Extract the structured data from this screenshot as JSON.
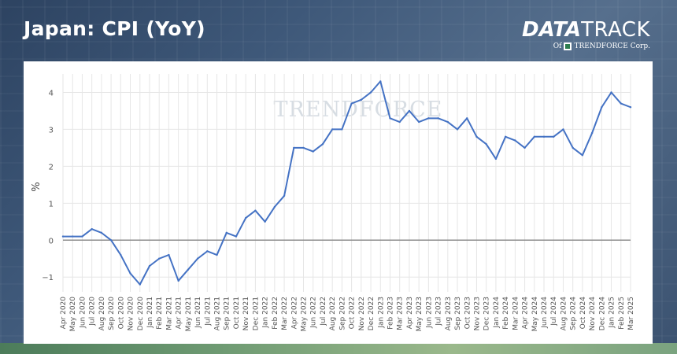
{
  "header": {
    "title": "Japan: CPI (YoY)",
    "brand_strong": "DATA",
    "brand_light": "TRACK",
    "brand_sub_prefix": "Of",
    "brand_sub_name": "TRENDFORCE",
    "brand_sub_suffix": "Corp."
  },
  "colors": {
    "line": "#4472c4",
    "zero_line": "#8c8c8c",
    "grid": "#e6e6e6"
  },
  "chart_data": {
    "type": "line",
    "title": "",
    "xlabel": "",
    "ylabel": "%",
    "watermark": "TRENDFORCE",
    "ylim": [
      -1.4,
      4.5
    ],
    "yticks": [
      -1,
      0,
      1,
      2,
      3,
      4
    ],
    "ytick_labels": [
      "−1",
      "0",
      "1",
      "2",
      "3",
      "4"
    ],
    "grid": true,
    "legend": "none",
    "x": [
      "Apr 2020",
      "May 2020",
      "Jun 2020",
      "Jul 2020",
      "Aug 2020",
      "Sep 2020",
      "Oct 2020",
      "Nov 2020",
      "Dec 2020",
      "Jan 2021",
      "Feb 2021",
      "Mar 2021",
      "Apr 2021",
      "May 2021",
      "Jun 2021",
      "Jul 2021",
      "Aug 2021",
      "Sep 2021",
      "Oct 2021",
      "Nov 2021",
      "Dec 2021",
      "Jan 2022",
      "Feb 2022",
      "Mar 2022",
      "Apr 2022",
      "May 2022",
      "Jun 2022",
      "Jul 2022",
      "Aug 2022",
      "Sep 2022",
      "Oct 2022",
      "Nov 2022",
      "Dec 2022",
      "Jan 2023",
      "Feb 2023",
      "Mar 2023",
      "Apr 2023",
      "May 2023",
      "Jun 2023",
      "Jul 2023",
      "Aug 2023",
      "Sep 2023",
      "Oct 2023",
      "Nov 2023",
      "Dec 2023",
      "Jan 2024",
      "Feb 2024",
      "Mar 2024",
      "Apr 2024",
      "May 2024",
      "Jun 2024",
      "Jul 2024",
      "Aug 2024",
      "Sep 2024",
      "Oct 2024",
      "Nov 2024",
      "Dec 2024",
      "Jan 2025",
      "Feb 2025",
      "Mar 2025"
    ],
    "series": [
      {
        "values": [
          0.1,
          0.1,
          0.1,
          0.3,
          0.2,
          0.0,
          -0.4,
          -0.9,
          -1.2,
          -0.7,
          -0.5,
          -0.4,
          -1.1,
          -0.8,
          -0.5,
          -0.3,
          -0.4,
          0.2,
          0.1,
          0.6,
          0.8,
          0.5,
          0.9,
          1.2,
          2.5,
          2.5,
          2.4,
          2.6,
          3.0,
          3.0,
          3.7,
          3.8,
          4.0,
          4.3,
          3.3,
          3.2,
          3.5,
          3.2,
          3.3,
          3.3,
          3.2,
          3.0,
          3.3,
          2.8,
          2.6,
          2.2,
          2.8,
          2.7,
          2.5,
          2.8,
          2.8,
          2.8,
          3.0,
          2.5,
          2.3,
          2.9,
          3.6,
          4.0,
          3.7,
          3.6
        ]
      }
    ]
  }
}
